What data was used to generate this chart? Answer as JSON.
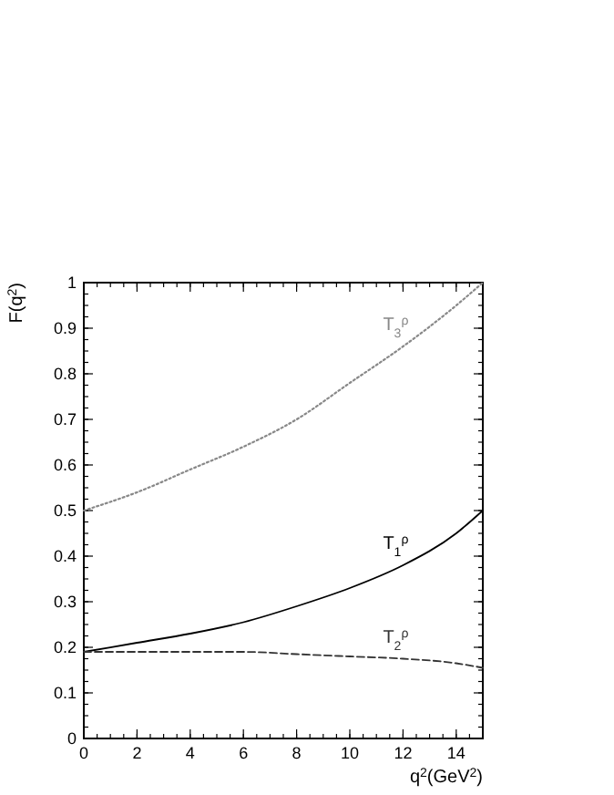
{
  "chart_data": {
    "type": "line",
    "xlabel": "q$^{2}$(GeV$^{2}$)",
    "ylabel": "F(q$^{2}$)",
    "xlim": [
      0,
      15
    ],
    "ylim": [
      0,
      1
    ],
    "xticks": [
      0,
      2,
      4,
      6,
      8,
      10,
      12,
      14
    ],
    "yticks": [
      0,
      0.1,
      0.2,
      0.3,
      0.4,
      0.5,
      0.6,
      0.7,
      0.8,
      0.9,
      1
    ],
    "grid": false,
    "legend": false,
    "marker": "none",
    "x": [
      0,
      2,
      4,
      6,
      8,
      10,
      12,
      14,
      15
    ],
    "series": [
      {
        "name": "T$_{3}$$^{ρ}$",
        "color": "#888888",
        "line_style": "dotted",
        "values": [
          0.5,
          0.54,
          0.59,
          0.64,
          0.7,
          0.78,
          0.86,
          0.95,
          1.0
        ]
      },
      {
        "name": "T$_{1}$$^{ρ}$",
        "color": "#000000",
        "line_style": "solid",
        "values": [
          0.19,
          0.21,
          0.23,
          0.255,
          0.29,
          0.33,
          0.38,
          0.45,
          0.5
        ]
      },
      {
        "name": "T$_{2}$$^{ρ}$",
        "color": "#333333",
        "line_style": "dashed",
        "values": [
          0.19,
          0.19,
          0.19,
          0.19,
          0.185,
          0.18,
          0.175,
          0.165,
          0.155
        ]
      }
    ]
  }
}
